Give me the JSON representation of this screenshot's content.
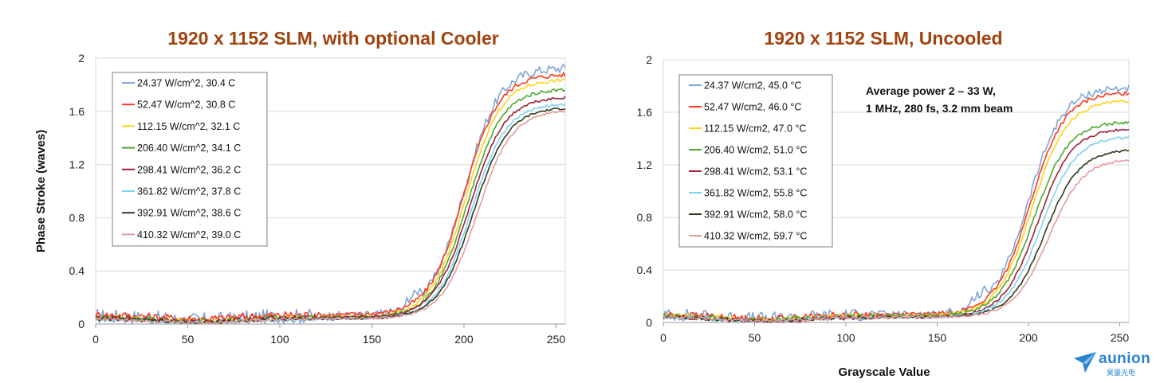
{
  "chart_data": [
    {
      "type": "line",
      "title": "1920 x 1152 SLM, with optional Cooler",
      "xlabel": "",
      "ylabel": "Phase Stroke (waves)",
      "xlim": [
        0,
        255
      ],
      "ylim": [
        0,
        2
      ],
      "xticks": [
        "0",
        "50",
        "100",
        "150",
        "200",
        "250"
      ],
      "yticks": [
        "0",
        "0.4",
        "0.8",
        "1.2",
        "1.6",
        "2"
      ],
      "grid": "horizontal",
      "legend": "top-left",
      "annotation": "",
      "series": [
        {
          "name": "24.37 W/cm^2, 30.4 C",
          "color": "#7ea6d8",
          "ymin": 0.06,
          "ymax": 1.93,
          "mid": 200,
          "noise": 0.035
        },
        {
          "name": "52.47 W/cm^2, 30.8 C",
          "color": "#ff3b1f",
          "ymin": 0.07,
          "ymax": 1.88,
          "mid": 200,
          "noise": 0.018
        },
        {
          "name": "112.15 W/cm^2, 32.1 C",
          "color": "#ffd21a",
          "ymin": 0.05,
          "ymax": 1.84,
          "mid": 201,
          "noise": 0.012
        },
        {
          "name": "206.40 W/cm^2, 34.1 C",
          "color": "#4ea72e",
          "ymin": 0.05,
          "ymax": 1.77,
          "mid": 202,
          "noise": 0.012
        },
        {
          "name": "298.41 W/cm^2, 36.2 C",
          "color": "#a0203a",
          "ymin": 0.05,
          "ymax": 1.71,
          "mid": 203,
          "noise": 0.01
        },
        {
          "name": "361.82 W/cm^2, 37.8 C",
          "color": "#7fd0f5",
          "ymin": 0.04,
          "ymax": 1.66,
          "mid": 204,
          "noise": 0.01
        },
        {
          "name": "392.91 W/cm^2, 38.6 C",
          "color": "#2e3d1c",
          "ymin": 0.04,
          "ymax": 1.63,
          "mid": 205,
          "noise": 0.008
        },
        {
          "name": "410.32 W/cm^2, 39.0 C",
          "color": "#e79a9e",
          "ymin": 0.04,
          "ymax": 1.61,
          "mid": 207,
          "noise": 0.008
        }
      ]
    },
    {
      "type": "line",
      "title": "1920 x 1152 SLM, Uncooled",
      "xlabel": "Grayscale Value",
      "ylabel": "",
      "xlim": [
        0,
        255
      ],
      "ylim": [
        0,
        2
      ],
      "xticks": [
        "0",
        "50",
        "100",
        "150",
        "200",
        "250"
      ],
      "yticks": [
        "0",
        "0.4",
        "0.8",
        "1.2",
        "1.6",
        "2"
      ],
      "grid": "horizontal",
      "legend": "top-left",
      "annotation": [
        "Average power  2 – 33 W,",
        "1 MHz, 280 fs, 3.2 mm beam"
      ],
      "series": [
        {
          "name": "24.37 W/cm2, 45.0 °C",
          "color": "#7ea6d8",
          "ymin": 0.06,
          "ymax": 1.79,
          "mid": 200,
          "noise": 0.03
        },
        {
          "name": "52.47 W/cm2, 46.0 °C",
          "color": "#ff3b1f",
          "ymin": 0.06,
          "ymax": 1.75,
          "mid": 201,
          "noise": 0.015
        },
        {
          "name": "112.15 W/cm2, 47.0 °C",
          "color": "#ffd21a",
          "ymin": 0.05,
          "ymax": 1.69,
          "mid": 202,
          "noise": 0.012
        },
        {
          "name": "206.40 W/cm2, 51.0 °C",
          "color": "#4ea72e",
          "ymin": 0.05,
          "ymax": 1.53,
          "mid": 203,
          "noise": 0.012
        },
        {
          "name": "298.41 W/cm2, 53.1 °C",
          "color": "#a0203a",
          "ymin": 0.04,
          "ymax": 1.48,
          "mid": 205,
          "noise": 0.01
        },
        {
          "name": "361.82 W/cm2, 55.8 °C",
          "color": "#7fd0f5",
          "ymin": 0.04,
          "ymax": 1.42,
          "mid": 207,
          "noise": 0.01
        },
        {
          "name": "392.91 W/cm2, 58.0 °C",
          "color": "#2e3d1c",
          "ymin": 0.04,
          "ymax": 1.32,
          "mid": 209,
          "noise": 0.008
        },
        {
          "name": "410.32 W/cm2, 59.7 °C",
          "color": "#e79a9e",
          "ymin": 0.04,
          "ymax": 1.25,
          "mid": 211,
          "noise": 0.008
        }
      ]
    }
  ],
  "logo": {
    "text": "aunion",
    "subtext": "昊量光电"
  }
}
